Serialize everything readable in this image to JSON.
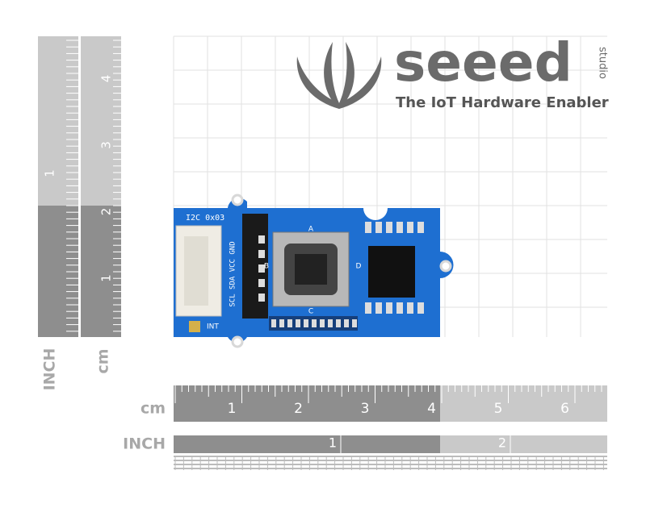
{
  "logo": {
    "brand": "seeed",
    "sub": "studio",
    "tagline": "The IoT Hardware Enabler"
  },
  "board": {
    "i2c": "I2C 0x03",
    "pins": "SCL SDA VCC GND",
    "int": "INT",
    "directions": [
      "A",
      "B",
      "C",
      "D"
    ]
  },
  "rulers": {
    "vertical_inch": {
      "unit": "INCH",
      "labels": [
        "1"
      ]
    },
    "vertical_cm": {
      "unit": "cm",
      "labels": [
        "1",
        "2",
        "3",
        "4"
      ]
    },
    "horizontal_cm": {
      "unit": "cm",
      "labels": [
        "1",
        "2",
        "3",
        "4",
        "5",
        "6"
      ]
    },
    "horizontal_inch": {
      "unit": "INCH",
      "labels": [
        "1",
        "2"
      ]
    }
  }
}
